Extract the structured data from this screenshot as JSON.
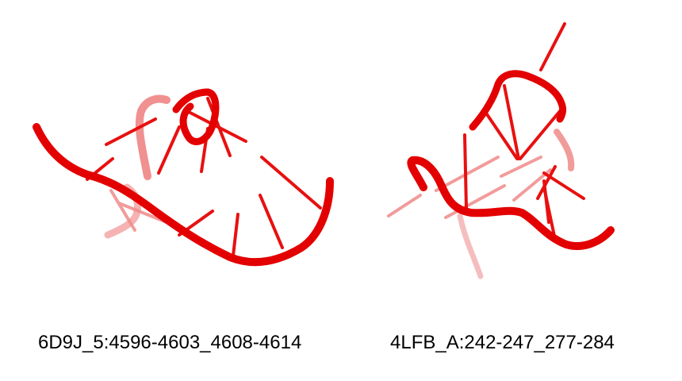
{
  "structures": [
    {
      "id": "6d9j",
      "label": "6D9J_5:4596-4603_4608-4614"
    },
    {
      "id": "4lfb",
      "label": "4LFB_A:242-247_277-284"
    }
  ],
  "colors": {
    "backbone": "#e30000",
    "base": "#e81010",
    "faded": "#f08a8a",
    "background": "#ffffff"
  }
}
